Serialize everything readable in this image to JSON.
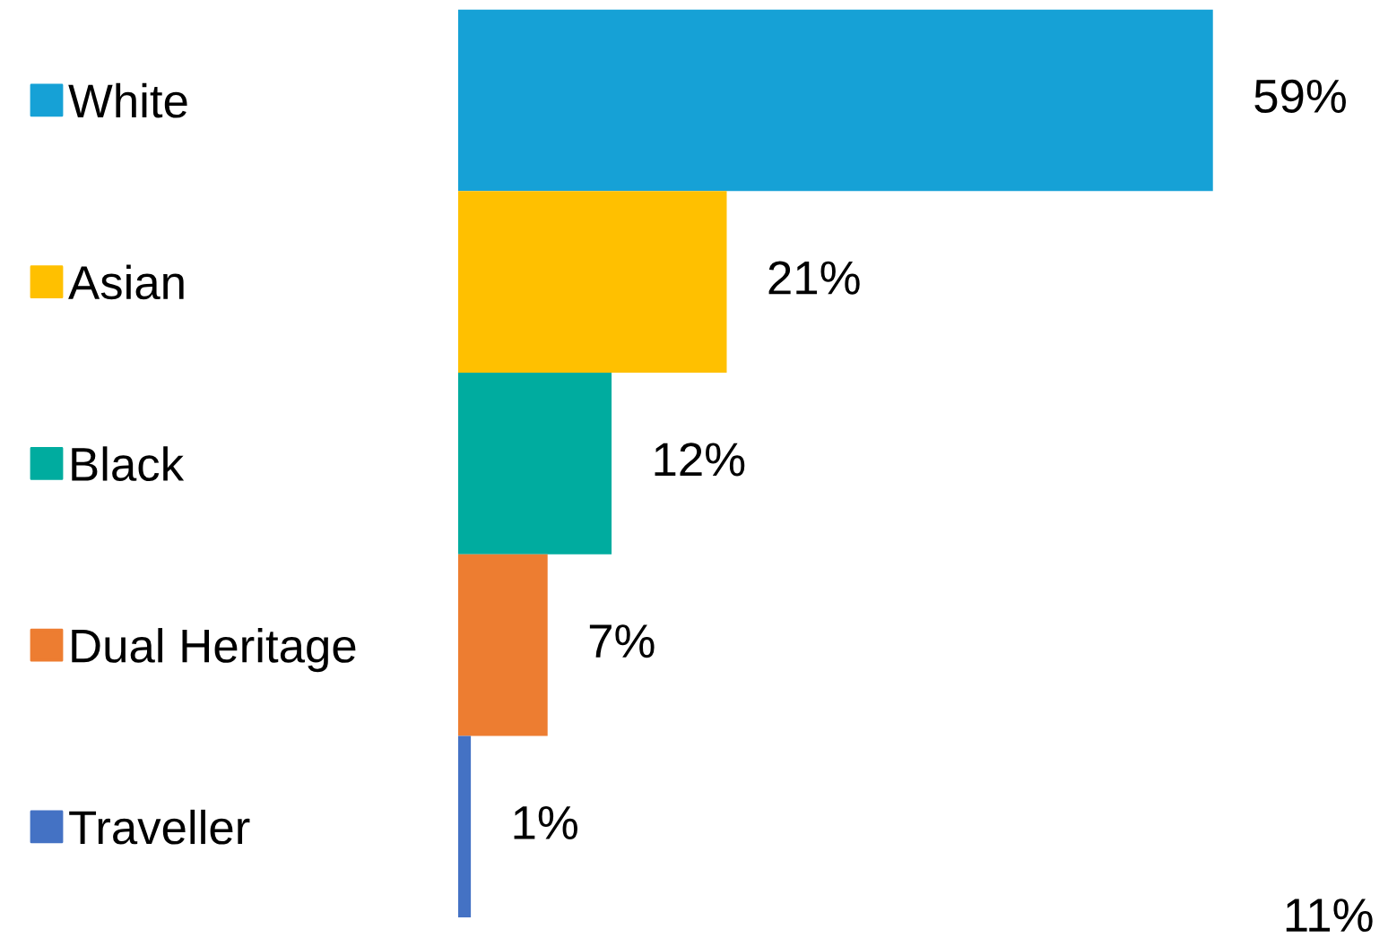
{
  "chart_data": {
    "type": "bar",
    "orientation": "horizontal",
    "categories": [
      "White",
      "Asian",
      "Black",
      "Dual Heritage",
      "Traveller"
    ],
    "values": [
      59,
      21,
      12,
      7,
      1
    ],
    "value_labels": [
      "59%",
      "21%",
      "12%",
      "7%",
      "1%"
    ],
    "colors": [
      "#16a1d6",
      "#ffc000",
      "#00ac9f",
      "#ed7d31",
      "#4472c4"
    ],
    "annotations": [
      "11%"
    ]
  }
}
